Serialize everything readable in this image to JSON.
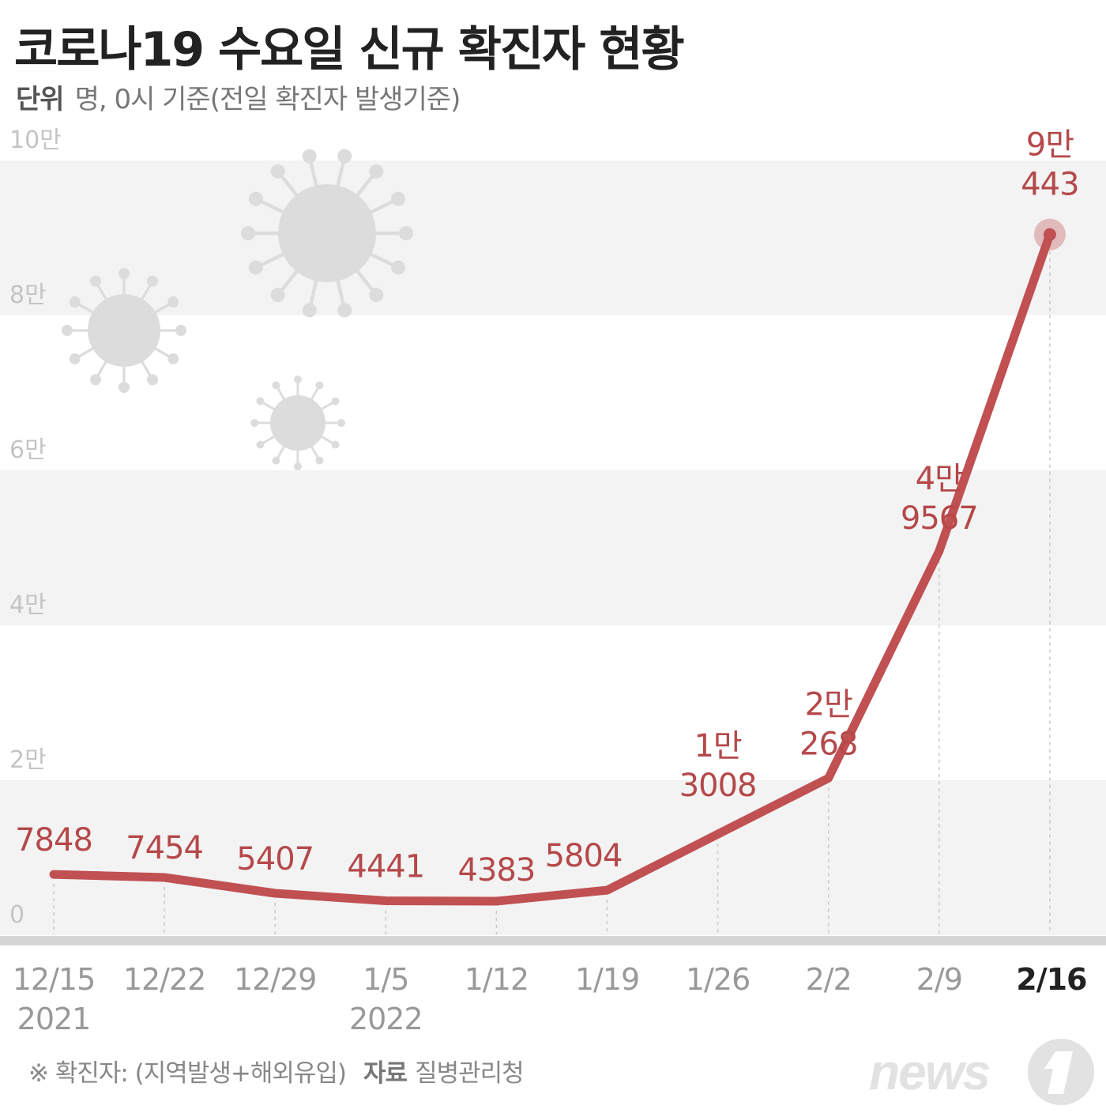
{
  "title": "코로나19 수요일 신규 확진자 현황",
  "unit": {
    "label": "단위",
    "text": "명, 0시 기준(전일 확진자 발생기준)"
  },
  "footer": {
    "note": "※ 확진자: (지역발생+해외유입)",
    "source_label": "자료",
    "source": "질병관리청"
  },
  "logo": {
    "text": "news1"
  },
  "colors": {
    "line": "#c05052",
    "label": "#b5484a",
    "band": "#f3f3f3",
    "axis": "#d6d6d6",
    "tick": "#999999",
    "ylabel": "#c4c4c4",
    "virus": "#dcdcdc"
  },
  "chart_data": {
    "type": "line",
    "categories": [
      "12/15",
      "12/22",
      "12/29",
      "1/5",
      "1/12",
      "1/19",
      "1/26",
      "2/2",
      "2/9",
      "2/16"
    ],
    "year_labels": [
      {
        "index": 0,
        "text": "2021"
      },
      {
        "index": 3,
        "text": "2022"
      }
    ],
    "highlight_index": 9,
    "series": [
      {
        "values": [
          7848,
          7454,
          5407,
          4441,
          4383,
          5804,
          null,
          20268,
          49567,
          90443
        ],
        "labels": [
          [
            "7848"
          ],
          [
            "7454"
          ],
          [
            "5407"
          ],
          [
            "4441"
          ],
          [
            "4383"
          ],
          [
            "5804"
          ],
          [
            "1만",
            "3008"
          ],
          [
            "2만",
            "268"
          ],
          [
            "4만",
            "9567"
          ],
          [
            "9만",
            "443"
          ]
        ]
      }
    ],
    "extra_label_value": 13008,
    "yticks": [
      {
        "value": 0,
        "label": "0"
      },
      {
        "value": 20000,
        "label": "2만"
      },
      {
        "value": 40000,
        "label": "4만"
      },
      {
        "value": 60000,
        "label": "6만"
      },
      {
        "value": 80000,
        "label": "8만"
      },
      {
        "value": 100000,
        "label": "10만"
      }
    ],
    "ylim": [
      0,
      100000
    ],
    "grid": "alternating bands"
  }
}
